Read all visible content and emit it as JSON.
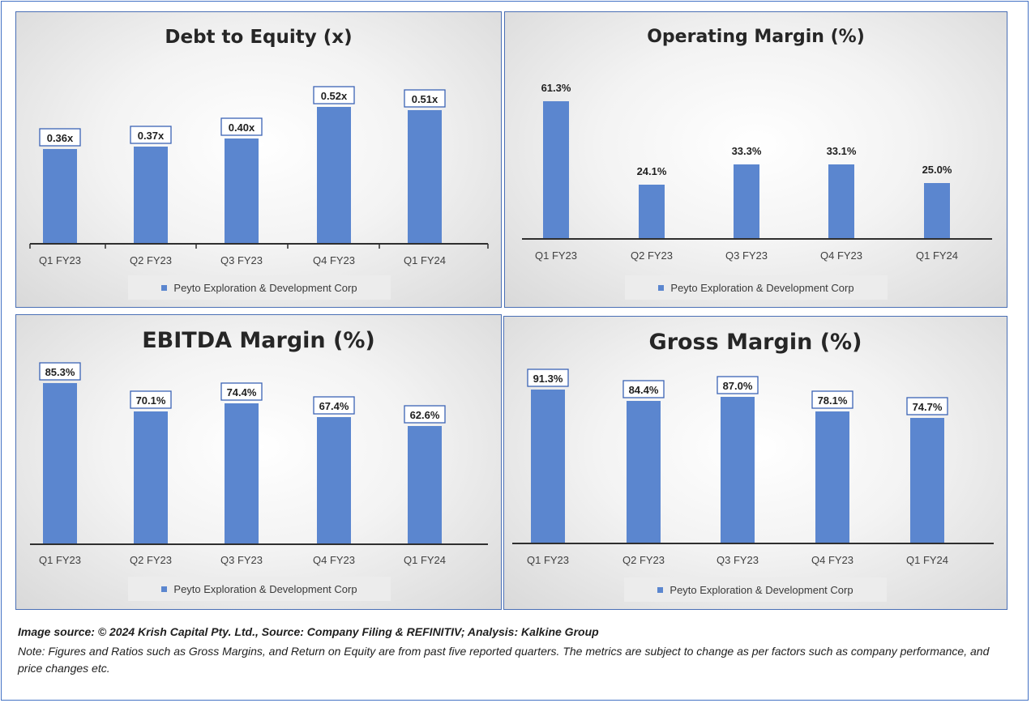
{
  "colors": {
    "bar": "#5b86cf",
    "axis": "#2f2f2f",
    "label_border": "#3b63b5"
  },
  "charts": [
    {
      "id": "de",
      "title": "Debt to Equity (x)",
      "legend": "Peyto Exploration & Development Corp",
      "chart_data": {
        "type": "bar",
        "categories": [
          "Q1 FY23",
          "Q2 FY23",
          "Q3 FY23",
          "Q4 FY23",
          "Q1 FY24"
        ],
        "series": [
          {
            "name": "Peyto Exploration & Development Corp",
            "values": [
              0.36,
              0.37,
              0.4,
              0.52,
              0.51
            ]
          }
        ],
        "data_labels": [
          "0.36x",
          "0.37x",
          "0.40x",
          "0.52x",
          "0.51x"
        ],
        "ylim": [
          0,
          0.58
        ],
        "grid": false,
        "legend_position": "bottom"
      }
    },
    {
      "id": "om",
      "title": "Operating Margin (%)",
      "legend": "Peyto Exploration & Development Corp",
      "chart_data": {
        "type": "bar",
        "categories": [
          "Q1 FY23",
          "Q2 FY23",
          "Q3 FY23",
          "Q4 FY23",
          "Q1 FY24"
        ],
        "series": [
          {
            "name": "Peyto Exploration & Development Corp",
            "values": [
              61.3,
              24.1,
              33.3,
              33.1,
              25.0
            ]
          }
        ],
        "data_labels": [
          "61.3%",
          "24.1%",
          "33.3%",
          "33.1%",
          "25.0%"
        ],
        "ylim": [
          0,
          66
        ],
        "grid": false,
        "legend_position": "bottom"
      }
    },
    {
      "id": "eb",
      "title": "EBITDA Margin (%)",
      "legend": "Peyto Exploration & Development Corp",
      "chart_data": {
        "type": "bar",
        "categories": [
          "Q1 FY23",
          "Q2 FY23",
          "Q3 FY23",
          "Q4 FY23",
          "Q1 FY24"
        ],
        "series": [
          {
            "name": "Peyto Exploration & Development Corp",
            "values": [
              85.3,
              70.1,
              74.4,
              67.4,
              62.6
            ]
          }
        ],
        "data_labels": [
          "85.3%",
          "70.1%",
          "74.4%",
          "67.4%",
          "62.6%"
        ],
        "ylim": [
          0,
          85.3
        ],
        "grid": false,
        "legend_position": "bottom"
      }
    },
    {
      "id": "gm",
      "title": "Gross Margin (%)",
      "legend": "Peyto Exploration & Development Corp",
      "chart_data": {
        "type": "bar",
        "categories": [
          "Q1 FY23",
          "Q2 FY23",
          "Q3 FY23",
          "Q4 FY23",
          "Q1 FY24"
        ],
        "series": [
          {
            "name": "Peyto Exploration & Development Corp",
            "values": [
              91.3,
              84.4,
              87.0,
              78.1,
              74.7
            ]
          }
        ],
        "data_labels": [
          "91.3%",
          "84.4%",
          "87.0%",
          "78.1%",
          "74.7%"
        ],
        "ylim": [
          0,
          91.3
        ],
        "grid": false,
        "legend_position": "bottom"
      }
    }
  ],
  "footer": {
    "source": "Image source: © 2024 Krish Capital Pty. Ltd., Source: Company Filing & REFINITIV; Analysis: Kalkine Group",
    "note": "Note: Figures and Ratios such as  Gross Margins, and Return on Equity are from past  five reported  quarters. The metrics are subject to change as per factors such as company performance, and price changes etc."
  }
}
